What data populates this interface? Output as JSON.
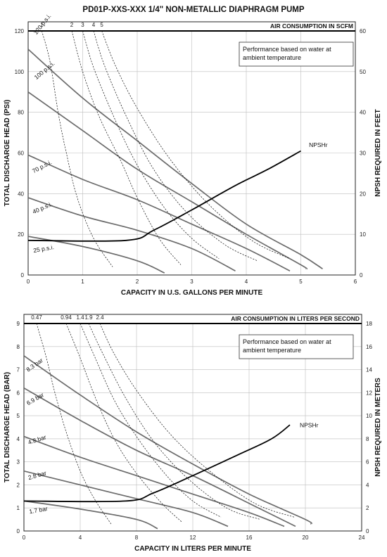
{
  "title": "PD01P-XXS-XXX  1/4\" NON-METALLIC DIAPHRAGM PUMP",
  "chart_data": [
    {
      "type": "line",
      "xlabel": "CAPACITY IN U.S. GALLONS PER MINUTE",
      "ylabel": "TOTAL DISCHARGE HEAD (PSI)",
      "y2label": "NPSH REQUIRED IN FEET",
      "top_header": "AIR CONSUMPTION IN SCFM",
      "note": [
        "Performance based on water at",
        "ambient temperature"
      ],
      "xlim": [
        0,
        6
      ],
      "ylim": [
        0,
        120
      ],
      "y2lim": [
        0,
        60
      ],
      "xticks": [
        0,
        1,
        2,
        3,
        4,
        5,
        6
      ],
      "yticks": [
        0,
        20,
        40,
        60,
        80,
        100,
        120
      ],
      "y2ticks": [
        0,
        10,
        20,
        30,
        40,
        50,
        60
      ],
      "grid": true,
      "series": [
        {
          "name": "120 p.s.i.",
          "kind": "pressure",
          "points": [
            [
              0,
              111
            ],
            [
              1,
              87
            ],
            [
              2,
              66
            ],
            [
              3,
              45
            ],
            [
              4,
              25
            ],
            [
              5,
              10
            ],
            [
              5.4,
              3
            ]
          ]
        },
        {
          "name": "100 p.s.i.",
          "kind": "pressure",
          "points": [
            [
              0,
              90
            ],
            [
              1,
              71
            ],
            [
              2,
              52
            ],
            [
              3,
              36
            ],
            [
              4,
              20
            ],
            [
              5,
              5
            ],
            [
              5.1,
              3
            ]
          ]
        },
        {
          "name": "70 p.s.i.",
          "kind": "pressure",
          "points": [
            [
              0,
              59
            ],
            [
              1,
              47
            ],
            [
              2,
              37
            ],
            [
              3,
              25
            ],
            [
              4,
              13
            ],
            [
              4.8,
              2
            ]
          ]
        },
        {
          "name": "40 p.s.i.",
          "kind": "pressure",
          "points": [
            [
              0,
              38
            ],
            [
              1,
              29
            ],
            [
              2,
              22
            ],
            [
              3,
              13
            ],
            [
              3.8,
              2
            ]
          ]
        },
        {
          "name": "25 p.s.i.",
          "kind": "pressure",
          "points": [
            [
              0,
              19
            ],
            [
              1,
              14
            ],
            [
              2,
              7
            ],
            [
              2.5,
              1
            ]
          ]
        },
        {
          "name": "1",
          "kind": "air",
          "points": [
            [
              0.25,
              120
            ],
            [
              0.4,
              105
            ],
            [
              0.55,
              80
            ],
            [
              0.7,
              60
            ],
            [
              0.9,
              38
            ],
            [
              1.2,
              18
            ],
            [
              1.55,
              4
            ]
          ]
        },
        {
          "name": "2",
          "kind": "air",
          "points": [
            [
              0.8,
              120
            ],
            [
              1.0,
              100
            ],
            [
              1.3,
              78
            ],
            [
              1.7,
              56
            ],
            [
              2.0,
              38
            ],
            [
              2.4,
              18
            ],
            [
              2.8,
              5
            ]
          ]
        },
        {
          "name": "3",
          "kind": "air",
          "points": [
            [
              1.0,
              120
            ],
            [
              1.2,
              102
            ],
            [
              1.6,
              76
            ],
            [
              2.0,
              54
            ],
            [
              2.5,
              33
            ],
            [
              3.0,
              18
            ],
            [
              3.5,
              8
            ]
          ]
        },
        {
          "name": "4",
          "kind": "air",
          "points": [
            [
              1.2,
              120
            ],
            [
              1.4,
              103
            ],
            [
              1.8,
              78
            ],
            [
              2.3,
              52
            ],
            [
              2.9,
              31
            ],
            [
              3.6,
              15
            ],
            [
              4.2,
              7
            ]
          ]
        },
        {
          "name": "5",
          "kind": "air",
          "points": [
            [
              1.35,
              120
            ],
            [
              1.6,
              103
            ],
            [
              2.0,
              82
            ],
            [
              2.6,
              57
            ],
            [
              3.3,
              35
            ],
            [
              4.1,
              17
            ],
            [
              4.8,
              8
            ]
          ]
        }
      ],
      "npsh": {
        "name": "NPSHr",
        "points_y2": [
          [
            0,
            8.5
          ],
          [
            1.8,
            8.5
          ],
          [
            2.3,
            11
          ],
          [
            3,
            16
          ],
          [
            3.8,
            22
          ],
          [
            4.4,
            26
          ],
          [
            5.0,
            30.5
          ]
        ]
      }
    },
    {
      "type": "line",
      "xlabel": "CAPACITY IN LITERS PER MINUTE",
      "ylabel": "TOTAL DISCHARGE HEAD (BAR)",
      "y2label": "NPSH REQUIRED IN METERS",
      "top_header": "AIR CONSUMPTION IN LITERS PER SECOND",
      "note": [
        "Performance based on water at",
        "ambient temperature"
      ],
      "xlim": [
        0,
        24
      ],
      "ylim": [
        0,
        9
      ],
      "y2lim": [
        0,
        18
      ],
      "xticks": [
        0,
        4,
        8,
        12,
        16,
        20,
        24
      ],
      "yticks": [
        0,
        1,
        2,
        3,
        4,
        5,
        6,
        7,
        8,
        9
      ],
      "y2ticks": [
        0,
        2,
        4,
        6,
        8,
        10,
        12,
        14,
        16,
        18
      ],
      "grid": true,
      "series": [
        {
          "name": "8.3 bar",
          "kind": "pressure",
          "points": [
            [
              0,
              7.6
            ],
            [
              4,
              5.9
            ],
            [
              8,
              4.3
            ],
            [
              12,
              2.9
            ],
            [
              16,
              1.6
            ],
            [
              20,
              0.5
            ],
            [
              20.4,
              0.3
            ]
          ]
        },
        {
          "name": "6.9 bar",
          "kind": "pressure",
          "points": [
            [
              0,
              6.2
            ],
            [
              4,
              4.8
            ],
            [
              8,
              3.5
            ],
            [
              12,
              2.4
            ],
            [
              16,
              1.2
            ],
            [
              19.3,
              0.2
            ]
          ]
        },
        {
          "name": "4.8 bar",
          "kind": "pressure",
          "points": [
            [
              0,
              4.1
            ],
            [
              4,
              3.2
            ],
            [
              8,
              2.4
            ],
            [
              12,
              1.6
            ],
            [
              16,
              0.8
            ],
            [
              18.5,
              0.2
            ]
          ]
        },
        {
          "name": "2.8 bar",
          "kind": "pressure",
          "points": [
            [
              0,
              2.6
            ],
            [
              4,
              2.0
            ],
            [
              8,
              1.4
            ],
            [
              12,
              0.8
            ],
            [
              14.5,
              0.2
            ]
          ]
        },
        {
          "name": "1.7 bar",
          "kind": "pressure",
          "points": [
            [
              0,
              1.3
            ],
            [
              4,
              0.95
            ],
            [
              8,
              0.5
            ],
            [
              9.5,
              0.1
            ]
          ]
        },
        {
          "name": "0.47",
          "kind": "air",
          "points": [
            [
              0.9,
              9
            ],
            [
              1.6,
              7.5
            ],
            [
              2.2,
              6
            ],
            [
              3,
              4.3
            ],
            [
              4,
              2.6
            ],
            [
              5,
              1.4
            ],
            [
              6.2,
              0.3
            ]
          ]
        },
        {
          "name": "0.94",
          "kind": "air",
          "points": [
            [
              3.0,
              9
            ],
            [
              4.0,
              7.5
            ],
            [
              5.2,
              5.6
            ],
            [
              6.5,
              3.9
            ],
            [
              8,
              2.5
            ],
            [
              9.8,
              1.2
            ],
            [
              11.2,
              0.4
            ]
          ]
        },
        {
          "name": "1.4",
          "kind": "air",
          "points": [
            [
              4.0,
              9
            ],
            [
              5.0,
              7.6
            ],
            [
              6.4,
              5.7
            ],
            [
              8,
              4.1
            ],
            [
              10,
              2.5
            ],
            [
              12,
              1.3
            ],
            [
              14,
              0.6
            ]
          ]
        },
        {
          "name": "1.9",
          "kind": "air",
          "points": [
            [
              4.6,
              9
            ],
            [
              5.6,
              7.7
            ],
            [
              7.2,
              5.8
            ],
            [
              9.2,
              3.9
            ],
            [
              11.6,
              2.3
            ],
            [
              14.4,
              1.0
            ],
            [
              16.8,
              0.5
            ]
          ]
        },
        {
          "name": "2.4",
          "kind": "air",
          "points": [
            [
              5.4,
              9
            ],
            [
              6.4,
              7.7
            ],
            [
              8,
              6.1
            ],
            [
              10.4,
              4.2
            ],
            [
              13.2,
              2.6
            ],
            [
              16.4,
              1.2
            ],
            [
              19.2,
              0.6
            ]
          ]
        }
      ],
      "npsh": {
        "name": "NPSHr",
        "points_y2": [
          [
            0,
            2.6
          ],
          [
            7.2,
            2.6
          ],
          [
            9.2,
            3.3
          ],
          [
            12,
            4.8
          ],
          [
            15.2,
            6.6
          ],
          [
            17.6,
            8.0
          ],
          [
            18.9,
            9.2
          ]
        ]
      }
    }
  ]
}
